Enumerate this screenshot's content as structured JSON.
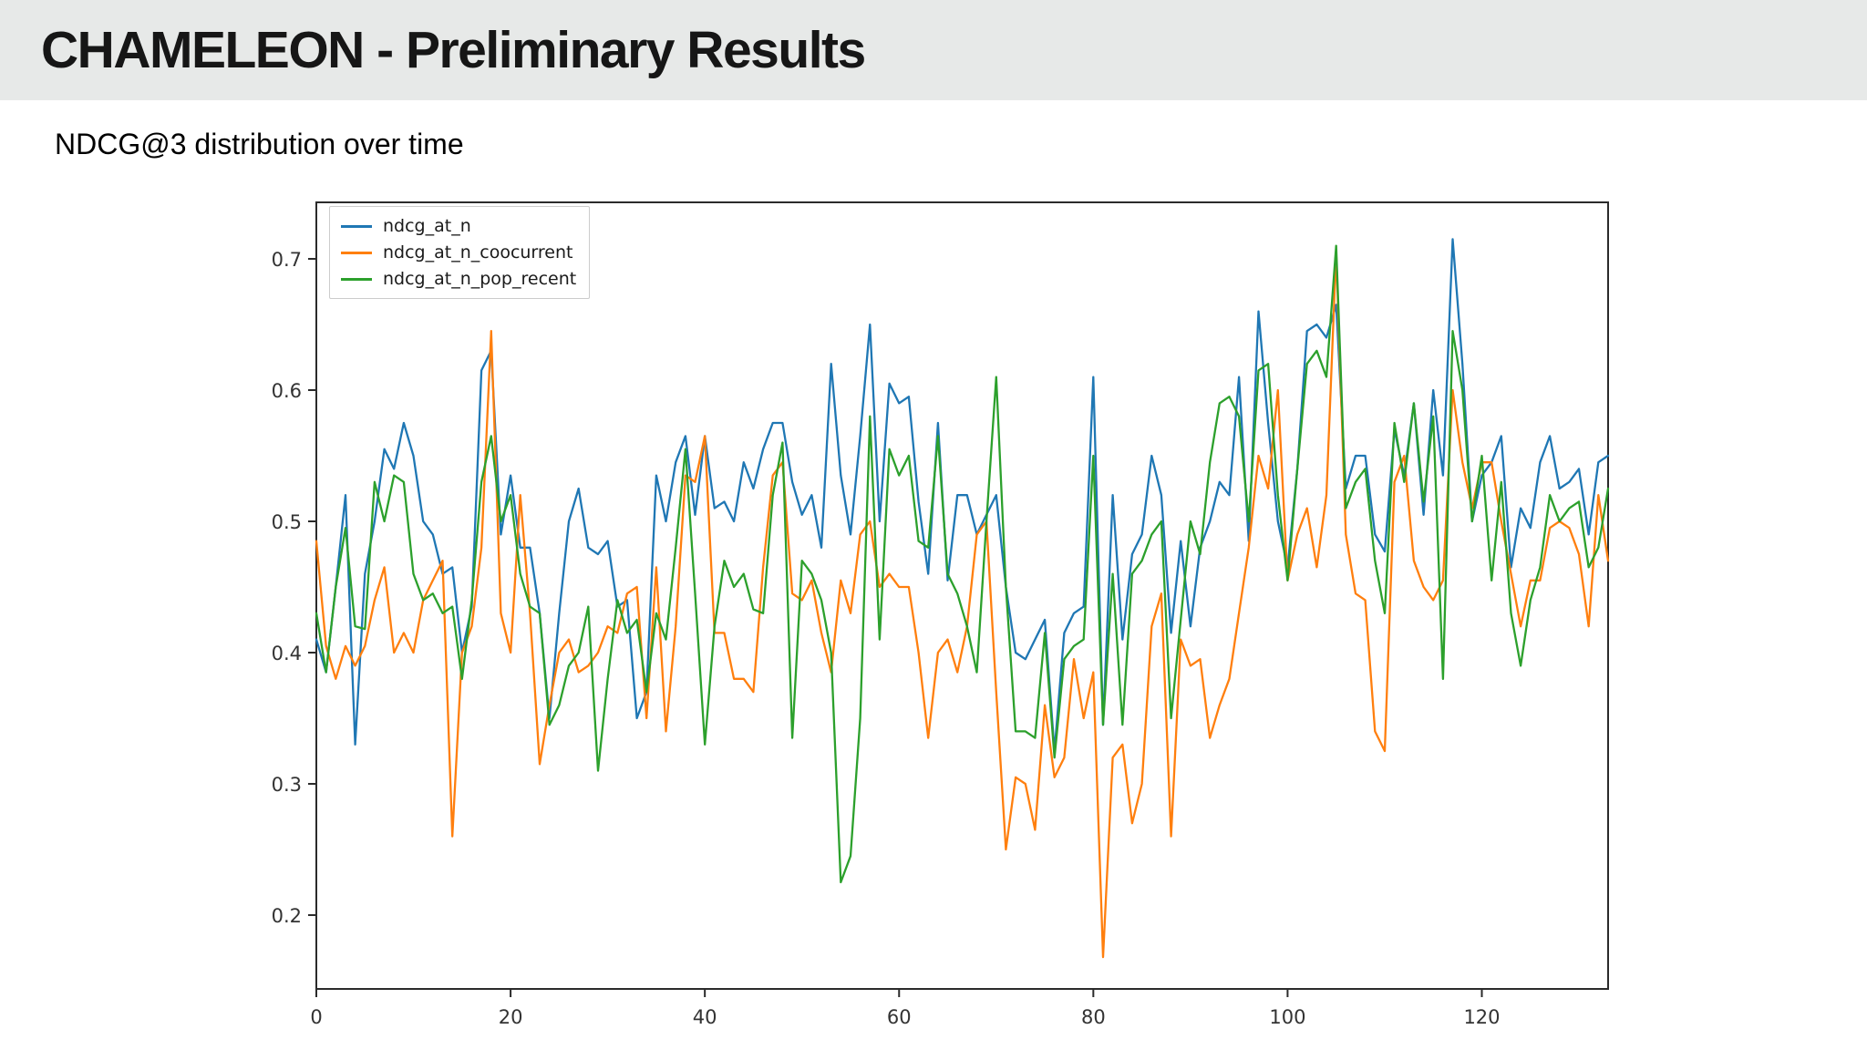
{
  "slide": {
    "title": "CHAMELEON - Preliminary Results",
    "subtitle": "NDCG@3 distribution over time"
  },
  "chart_data": {
    "type": "line",
    "title": "NDCG@3 distribution over time",
    "xlabel": "",
    "ylabel": "",
    "xlim": [
      0,
      133
    ],
    "ylim": [
      0.144,
      0.743
    ],
    "x_ticks": [
      0,
      20,
      40,
      60,
      80,
      100,
      120
    ],
    "y_ticks": [
      0.2,
      0.3,
      0.4,
      0.5,
      0.6,
      0.7
    ],
    "grid": false,
    "legend_position": "upper-left",
    "axis_color": "#2b2b2b",
    "tick_label_color": "#333333",
    "series": [
      {
        "name": "ndcg_at_n",
        "color": "#1f77b4",
        "values": [
          0.41,
          0.385,
          0.45,
          0.52,
          0.33,
          0.46,
          0.5,
          0.555,
          0.54,
          0.575,
          0.55,
          0.5,
          0.49,
          0.46,
          0.465,
          0.4,
          0.435,
          0.615,
          0.63,
          0.49,
          0.535,
          0.48,
          0.48,
          0.43,
          0.35,
          0.43,
          0.5,
          0.525,
          0.48,
          0.475,
          0.485,
          0.435,
          0.44,
          0.35,
          0.37,
          0.535,
          0.5,
          0.545,
          0.565,
          0.505,
          0.565,
          0.51,
          0.515,
          0.5,
          0.545,
          0.525,
          0.555,
          0.575,
          0.575,
          0.53,
          0.505,
          0.52,
          0.48,
          0.62,
          0.535,
          0.49,
          0.565,
          0.65,
          0.5,
          0.605,
          0.59,
          0.595,
          0.515,
          0.46,
          0.575,
          0.455,
          0.52,
          0.52,
          0.49,
          0.505,
          0.52,
          0.45,
          0.4,
          0.395,
          0.41,
          0.425,
          0.325,
          0.415,
          0.43,
          0.435,
          0.61,
          0.345,
          0.52,
          0.41,
          0.475,
          0.49,
          0.55,
          0.52,
          0.415,
          0.485,
          0.42,
          0.48,
          0.5,
          0.53,
          0.52,
          0.61,
          0.485,
          0.66,
          0.575,
          0.5,
          0.465,
          0.54,
          0.645,
          0.65,
          0.64,
          0.665,
          0.525,
          0.55,
          0.55,
          0.49,
          0.477,
          0.57,
          0.535,
          0.59,
          0.505,
          0.6,
          0.535,
          0.715,
          0.62,
          0.5,
          0.535,
          0.545,
          0.565,
          0.465,
          0.51,
          0.495,
          0.545,
          0.565,
          0.525,
          0.53,
          0.54,
          0.49,
          0.545,
          0.55
        ]
      },
      {
        "name": "ndcg_at_n_coocurrent",
        "color": "#ff7f0e",
        "values": [
          0.485,
          0.405,
          0.38,
          0.405,
          0.39,
          0.405,
          0.44,
          0.465,
          0.4,
          0.415,
          0.4,
          0.44,
          0.455,
          0.47,
          0.26,
          0.4,
          0.42,
          0.48,
          0.645,
          0.43,
          0.4,
          0.52,
          0.43,
          0.315,
          0.36,
          0.4,
          0.41,
          0.385,
          0.39,
          0.4,
          0.42,
          0.415,
          0.445,
          0.45,
          0.35,
          0.465,
          0.34,
          0.42,
          0.535,
          0.53,
          0.565,
          0.415,
          0.415,
          0.38,
          0.38,
          0.37,
          0.465,
          0.535,
          0.545,
          0.445,
          0.44,
          0.455,
          0.415,
          0.385,
          0.455,
          0.43,
          0.49,
          0.5,
          0.45,
          0.46,
          0.45,
          0.45,
          0.4,
          0.335,
          0.4,
          0.41,
          0.385,
          0.42,
          0.49,
          0.5,
          0.37,
          0.25,
          0.305,
          0.3,
          0.265,
          0.36,
          0.305,
          0.32,
          0.395,
          0.35,
          0.385,
          0.168,
          0.32,
          0.33,
          0.27,
          0.3,
          0.42,
          0.445,
          0.26,
          0.41,
          0.39,
          0.395,
          0.335,
          0.36,
          0.38,
          0.43,
          0.48,
          0.55,
          0.525,
          0.6,
          0.455,
          0.49,
          0.51,
          0.465,
          0.52,
          0.705,
          0.49,
          0.445,
          0.44,
          0.34,
          0.325,
          0.53,
          0.55,
          0.47,
          0.45,
          0.44,
          0.455,
          0.6,
          0.545,
          0.51,
          0.545,
          0.545,
          0.5,
          0.46,
          0.42,
          0.455,
          0.455,
          0.495,
          0.5,
          0.495,
          0.475,
          0.42,
          0.52,
          0.47
        ]
      },
      {
        "name": "ndcg_at_n_pop_recent",
        "color": "#2ca02c",
        "values": [
          0.43,
          0.385,
          0.45,
          0.495,
          0.42,
          0.418,
          0.53,
          0.5,
          0.535,
          0.53,
          0.46,
          0.44,
          0.445,
          0.43,
          0.435,
          0.38,
          0.44,
          0.53,
          0.565,
          0.5,
          0.52,
          0.46,
          0.435,
          0.43,
          0.345,
          0.36,
          0.39,
          0.4,
          0.435,
          0.31,
          0.38,
          0.44,
          0.415,
          0.425,
          0.37,
          0.43,
          0.41,
          0.48,
          0.555,
          0.445,
          0.33,
          0.42,
          0.47,
          0.45,
          0.46,
          0.433,
          0.43,
          0.52,
          0.56,
          0.335,
          0.47,
          0.46,
          0.44,
          0.4,
          0.225,
          0.245,
          0.35,
          0.58,
          0.41,
          0.555,
          0.535,
          0.55,
          0.485,
          0.48,
          0.565,
          0.46,
          0.445,
          0.42,
          0.385,
          0.5,
          0.61,
          0.45,
          0.34,
          0.34,
          0.335,
          0.415,
          0.32,
          0.395,
          0.405,
          0.41,
          0.55,
          0.345,
          0.46,
          0.345,
          0.46,
          0.47,
          0.49,
          0.5,
          0.35,
          0.425,
          0.5,
          0.475,
          0.545,
          0.59,
          0.595,
          0.58,
          0.5,
          0.615,
          0.62,
          0.52,
          0.455,
          0.54,
          0.62,
          0.63,
          0.61,
          0.71,
          0.51,
          0.53,
          0.54,
          0.47,
          0.43,
          0.575,
          0.53,
          0.59,
          0.515,
          0.58,
          0.38,
          0.645,
          0.6,
          0.5,
          0.55,
          0.455,
          0.53,
          0.43,
          0.39,
          0.44,
          0.465,
          0.52,
          0.5,
          0.51,
          0.515,
          0.465,
          0.48,
          0.525
        ]
      }
    ]
  }
}
